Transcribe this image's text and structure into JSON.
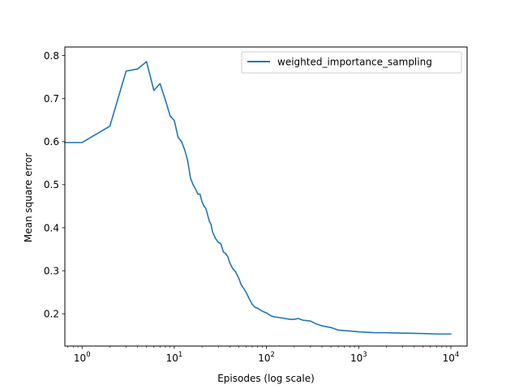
{
  "chart_data": {
    "type": "line",
    "xscale": "log",
    "xlabel": "Episodes (log scale)",
    "ylabel": "Mean square error",
    "xlim": [
      0.65,
      15000
    ],
    "ylim": [
      0.125,
      0.82
    ],
    "grid": false,
    "legend_position": "top-right",
    "x_ticks": [
      {
        "value": 1,
        "base": "10",
        "exp": "0"
      },
      {
        "value": 10,
        "base": "10",
        "exp": "1"
      },
      {
        "value": 100,
        "base": "10",
        "exp": "2"
      },
      {
        "value": 1000,
        "base": "10",
        "exp": "3"
      },
      {
        "value": 10000,
        "base": "10",
        "exp": "4"
      }
    ],
    "y_ticks": [
      "0.2",
      "0.3",
      "0.4",
      "0.5",
      "0.6",
      "0.7",
      "0.8"
    ],
    "series": [
      {
        "name": "weighted_importance_sampling",
        "color": "#1f77b4",
        "points": [
          [
            0.65,
            0.598
          ],
          [
            1,
            0.598
          ],
          [
            2,
            0.636
          ],
          [
            3,
            0.764
          ],
          [
            4,
            0.769
          ],
          [
            5,
            0.786
          ],
          [
            6,
            0.719
          ],
          [
            7,
            0.735
          ],
          [
            8,
            0.697
          ],
          [
            9,
            0.66
          ],
          [
            10,
            0.649
          ],
          [
            11,
            0.61
          ],
          [
            12,
            0.6
          ],
          [
            13,
            0.58
          ],
          [
            14,
            0.555
          ],
          [
            15,
            0.515
          ],
          [
            16,
            0.5
          ],
          [
            17,
            0.49
          ],
          [
            18,
            0.478
          ],
          [
            19,
            0.478
          ],
          [
            20,
            0.46
          ],
          [
            21,
            0.45
          ],
          [
            22,
            0.445
          ],
          [
            24,
            0.415
          ],
          [
            25,
            0.408
          ],
          [
            26,
            0.39
          ],
          [
            28,
            0.375
          ],
          [
            30,
            0.366
          ],
          [
            32,
            0.363
          ],
          [
            34,
            0.344
          ],
          [
            36,
            0.34
          ],
          [
            38,
            0.333
          ],
          [
            40,
            0.318
          ],
          [
            43,
            0.305
          ],
          [
            46,
            0.298
          ],
          [
            50,
            0.283
          ],
          [
            53,
            0.268
          ],
          [
            57,
            0.258
          ],
          [
            60,
            0.25
          ],
          [
            65,
            0.235
          ],
          [
            70,
            0.222
          ],
          [
            75,
            0.215
          ],
          [
            80,
            0.213
          ],
          [
            90,
            0.206
          ],
          [
            100,
            0.202
          ],
          [
            110,
            0.196
          ],
          [
            120,
            0.193
          ],
          [
            150,
            0.19
          ],
          [
            180,
            0.187
          ],
          [
            200,
            0.187
          ],
          [
            220,
            0.189
          ],
          [
            250,
            0.185
          ],
          [
            300,
            0.183
          ],
          [
            350,
            0.176
          ],
          [
            400,
            0.172
          ],
          [
            500,
            0.168
          ],
          [
            600,
            0.162
          ],
          [
            800,
            0.16
          ],
          [
            1000,
            0.158
          ],
          [
            1500,
            0.156
          ],
          [
            2000,
            0.156
          ],
          [
            3000,
            0.155
          ],
          [
            5000,
            0.154
          ],
          [
            7000,
            0.153
          ],
          [
            10000,
            0.153
          ]
        ]
      }
    ]
  }
}
